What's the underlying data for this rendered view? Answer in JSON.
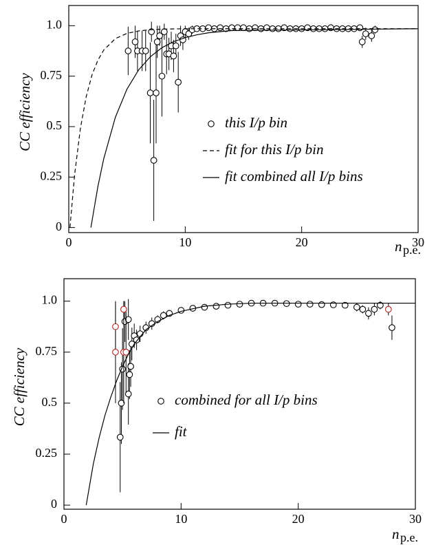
{
  "chart_data": [
    {
      "type": "scatter",
      "ylabel": "CC efficiency",
      "xlabel": "n",
      "xlabel_sub": "p.e.",
      "xlim": [
        0,
        30
      ],
      "ylim": [
        -0.025,
        1.1
      ],
      "xticks": [
        0,
        10,
        20,
        30
      ],
      "yticks": [
        0,
        0.25,
        0.5,
        0.75,
        {
          "value": 1,
          "label": "1.0"
        }
      ],
      "series": [
        {
          "name": "this I/p bin",
          "kind": "points",
          "color": "#000000",
          "x": [
            5.1,
            5.7,
            5.9,
            6.3,
            6.6,
            7.0,
            7.1,
            7.3,
            7.5,
            7.6,
            7.8,
            8.0,
            8.2,
            8.4,
            8.6,
            8.8,
            9.0,
            9.2,
            9.4,
            9.6,
            9.8,
            10.0,
            10.3,
            10.6,
            11,
            11.5,
            12,
            12.5,
            13,
            13.5,
            14,
            14.5,
            15,
            15.5,
            16,
            16.5,
            17,
            17.5,
            18,
            18.5,
            19,
            19.5,
            20,
            20.5,
            21,
            21.5,
            22,
            22.5,
            23,
            23.5,
            24,
            24.5,
            25,
            25.2,
            25.5,
            26,
            26.3
          ],
          "values": [
            0.875,
            0.92,
            0.875,
            0.875,
            0.875,
            0.667,
            0.97,
            0.333,
            0.667,
            0.92,
            0.95,
            0.75,
            0.97,
            0.86,
            0.86,
            0.9,
            0.85,
            0.9,
            0.72,
            0.95,
            0.93,
            0.97,
            0.96,
            0.98,
            0.985,
            0.985,
            0.99,
            0.985,
            0.99,
            0.985,
            0.99,
            0.99,
            0.99,
            0.985,
            0.99,
            0.985,
            0.99,
            0.985,
            0.985,
            0.99,
            0.985,
            0.985,
            0.985,
            0.99,
            0.985,
            0.985,
            0.985,
            0.99,
            0.985,
            0.985,
            0.985,
            0.985,
            0.99,
            0.92,
            0.96,
            0.95,
            0.98
          ],
          "errors": [
            0.12,
            0.08,
            0.1,
            0.1,
            0.1,
            0.25,
            0.05,
            0.3,
            0.25,
            0.08,
            0.05,
            0.2,
            0.04,
            0.1,
            0.08,
            0.07,
            0.08,
            0.06,
            0.15,
            0.05,
            0.05,
            0.03,
            0.03,
            0.02,
            0.015,
            0.015,
            0.01,
            0.01,
            0.01,
            0.01,
            0.01,
            0.01,
            0.01,
            0.01,
            0.01,
            0.01,
            0.01,
            0.01,
            0.01,
            0.01,
            0.01,
            0.01,
            0.01,
            0.01,
            0.01,
            0.01,
            0.01,
            0.01,
            0.01,
            0.01,
            0.01,
            0.01,
            0.015,
            0.03,
            0.03,
            0.03,
            0.02
          ]
        },
        {
          "name": "fit for this I/p bin",
          "kind": "line",
          "dash": true,
          "color": "#000000",
          "x": [
            0.1,
            0.5,
            1,
            1.5,
            2,
            2.5,
            3,
            4,
            5,
            6,
            7,
            8,
            10,
            30
          ],
          "values": [
            0,
            0.261,
            0.492,
            0.649,
            0.757,
            0.829,
            0.879,
            0.936,
            0.962,
            0.974,
            0.98,
            0.983,
            0.985,
            0.985
          ]
        },
        {
          "name": "fit combined all I/p bins",
          "kind": "line",
          "dash": false,
          "color": "#000000",
          "x": [
            1.9,
            2.5,
            3,
            4,
            5,
            6,
            7,
            8,
            9,
            10,
            11,
            12,
            14,
            30
          ],
          "values": [
            0,
            0.203,
            0.34,
            0.546,
            0.686,
            0.781,
            0.846,
            0.891,
            0.921,
            0.941,
            0.955,
            0.965,
            0.976,
            0.985
          ]
        }
      ]
    },
    {
      "type": "scatter",
      "ylabel": "CC efficiency",
      "xlabel": "n",
      "xlabel_sub": "p.e.",
      "xlim": [
        0,
        30
      ],
      "ylim": [
        -0.02,
        1.11
      ],
      "xticks": [
        0,
        10,
        20,
        30
      ],
      "yticks": [
        0,
        0.25,
        0.5,
        0.75,
        {
          "value": 1,
          "label": "1.0"
        }
      ],
      "series": [
        {
          "name": "combined for all I/p bins",
          "kind": "points",
          "color": "#000000",
          "x": [
            4.8,
            4.9,
            5.0,
            5.2,
            5.5,
            5.5,
            5.6,
            5.7,
            5.8,
            6.0,
            6.2,
            6.5,
            7,
            7.5,
            8,
            8.5,
            9,
            10,
            11,
            12,
            13,
            14,
            15,
            16,
            17,
            18,
            19,
            20,
            21,
            22,
            23,
            24,
            25,
            25.5,
            26,
            26.5,
            27,
            28
          ],
          "values": [
            0.333,
            0.5,
            0.667,
            0.9,
            0.91,
            0.545,
            0.64,
            0.68,
            0.79,
            0.83,
            0.81,
            0.84,
            0.87,
            0.89,
            0.91,
            0.93,
            0.94,
            0.955,
            0.965,
            0.97,
            0.975,
            0.98,
            0.985,
            0.99,
            0.99,
            0.99,
            0.988,
            0.985,
            0.985,
            0.983,
            0.982,
            0.98,
            0.97,
            0.96,
            0.94,
            0.96,
            0.98,
            0.87
          ],
          "errors": [
            0.27,
            0.2,
            0.2,
            0.1,
            0.1,
            0.15,
            0.12,
            0.1,
            0.08,
            0.06,
            0.05,
            0.04,
            0.03,
            0.03,
            0.02,
            0.02,
            0.015,
            0.01,
            0.01,
            0.01,
            0.01,
            0.01,
            0.01,
            0.01,
            0.01,
            0.01,
            0.01,
            0.01,
            0.01,
            0.01,
            0.01,
            0.01,
            0.02,
            0.02,
            0.03,
            0.03,
            0.02,
            0.06
          ]
        },
        {
          "kind": "points",
          "color": "#b22222",
          "x": [
            4.4,
            4.4,
            5.1,
            5.1,
            5.3,
            27.7
          ],
          "values": [
            0.875,
            0.75,
            0.96,
            0.75,
            0.75,
            0.96
          ],
          "errors": [
            0.12,
            0.25,
            0.04,
            0.25,
            0.2,
            0.03
          ]
        },
        {
          "name": "fit",
          "kind": "line",
          "dash": false,
          "color": "#000000",
          "x": [
            1.9,
            2.5,
            3,
            3.5,
            4,
            4.5,
            5,
            5.5,
            6,
            7,
            8,
            9,
            10,
            12,
            14,
            16,
            30
          ],
          "values": [
            0,
            0.2,
            0.33,
            0.44,
            0.53,
            0.61,
            0.68,
            0.74,
            0.79,
            0.86,
            0.9,
            0.93,
            0.95,
            0.975,
            0.985,
            0.99,
            0.99
          ]
        }
      ]
    }
  ]
}
